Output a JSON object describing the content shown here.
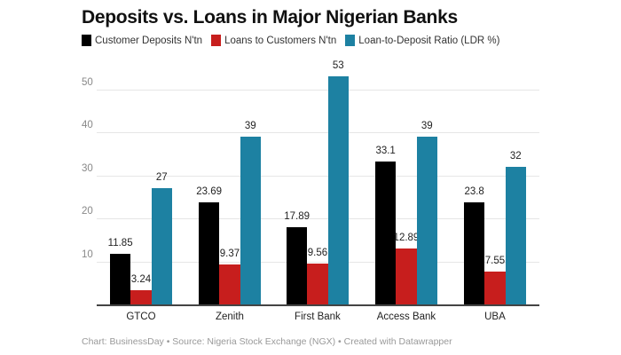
{
  "chart_data": {
    "type": "bar",
    "title": "Deposits vs. Loans in Major Nigerian Banks",
    "categories": [
      "GTCO",
      "Zenith",
      "First Bank",
      "Access Bank",
      "UBA"
    ],
    "series": [
      {
        "name": "Customer Deposits N'tn",
        "color": "#000000",
        "values": [
          11.85,
          23.69,
          17.89,
          33.1,
          23.8
        ],
        "labels": [
          "11.85",
          "23.69",
          "17.89",
          "33.1",
          "23.8"
        ]
      },
      {
        "name": "Loans to Customers N'tn",
        "color": "#c71e1d",
        "values": [
          3.24,
          9.37,
          9.56,
          12.89,
          7.55
        ],
        "labels": [
          "3.24",
          "9.37",
          "9.56",
          "12.89",
          "7.55"
        ]
      },
      {
        "name": "Loan-to-Deposit Ratio (LDR %)",
        "color": "#1d81a2",
        "values": [
          27,
          39,
          53,
          39,
          32
        ],
        "labels": [
          "27",
          "39",
          "53",
          "39",
          "32"
        ]
      }
    ],
    "xlabel": "",
    "ylabel": "",
    "ylim": [
      0,
      55
    ],
    "yticks": [
      "10",
      "20",
      "30",
      "40",
      "50"
    ],
    "grid": true,
    "legend_position": "top",
    "footer": "Chart: BusinessDay • Source: Nigeria Stock Exchange (NGX) • Created with Datawrapper"
  }
}
